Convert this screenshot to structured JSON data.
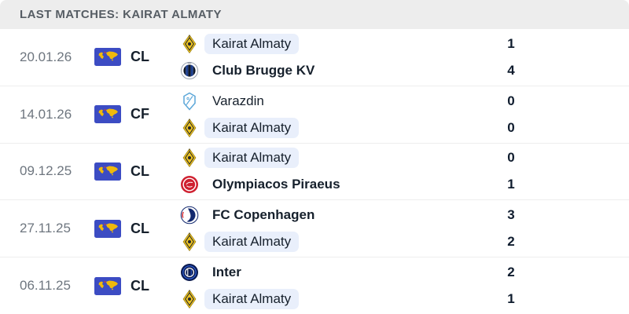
{
  "header": {
    "title": "LAST MATCHES: KAIRAT ALMATY"
  },
  "colors": {
    "header_bg": "#ededed",
    "header_text": "#565d64",
    "date_text": "#6e767f",
    "team_name_text": "#16202c",
    "score_text": "#0f1c2e",
    "highlight_bg": "#e9effb",
    "flag_blue": "#3c4cc3",
    "flag_map_yellow": "#f0b90b",
    "kairat_gold": "#edc422",
    "olympiacos_red": "#cf2030",
    "copenhagen_navy": "#12286e",
    "inter_navy": "#0a1a4f",
    "varazdin_blue": "#5aa6d8",
    "brugge_navy": "#1d3f8f"
  },
  "competition_flag_icon": "world-map-flag-icon",
  "matches": [
    {
      "date": "20.01.26",
      "competition": "CL",
      "home": {
        "name": "Kairat Almaty",
        "score": "1",
        "winner": false,
        "highlighted": true,
        "logo": "kairat-crest-icon"
      },
      "away": {
        "name": "Club Brugge KV",
        "score": "4",
        "winner": true,
        "highlighted": false,
        "logo": "club-brugge-crest-icon"
      }
    },
    {
      "date": "14.01.26",
      "competition": "CF",
      "home": {
        "name": "Varazdin",
        "score": "0",
        "winner": false,
        "highlighted": false,
        "logo": "varazdin-crest-icon"
      },
      "away": {
        "name": "Kairat Almaty",
        "score": "0",
        "winner": false,
        "highlighted": true,
        "logo": "kairat-crest-icon"
      }
    },
    {
      "date": "09.12.25",
      "competition": "CL",
      "home": {
        "name": "Kairat Almaty",
        "score": "0",
        "winner": false,
        "highlighted": true,
        "logo": "kairat-crest-icon"
      },
      "away": {
        "name": "Olympiacos Piraeus",
        "score": "1",
        "winner": true,
        "highlighted": false,
        "logo": "olympiacos-crest-icon"
      }
    },
    {
      "date": "27.11.25",
      "competition": "CL",
      "home": {
        "name": "FC Copenhagen",
        "score": "3",
        "winner": true,
        "highlighted": false,
        "logo": "fc-copenhagen-crest-icon"
      },
      "away": {
        "name": "Kairat Almaty",
        "score": "2",
        "winner": false,
        "highlighted": true,
        "logo": "kairat-crest-icon"
      }
    },
    {
      "date": "06.11.25",
      "competition": "CL",
      "home": {
        "name": "Inter",
        "score": "2",
        "winner": true,
        "highlighted": false,
        "logo": "inter-crest-icon"
      },
      "away": {
        "name": "Kairat Almaty",
        "score": "1",
        "winner": false,
        "highlighted": true,
        "logo": "kairat-crest-icon"
      }
    }
  ]
}
